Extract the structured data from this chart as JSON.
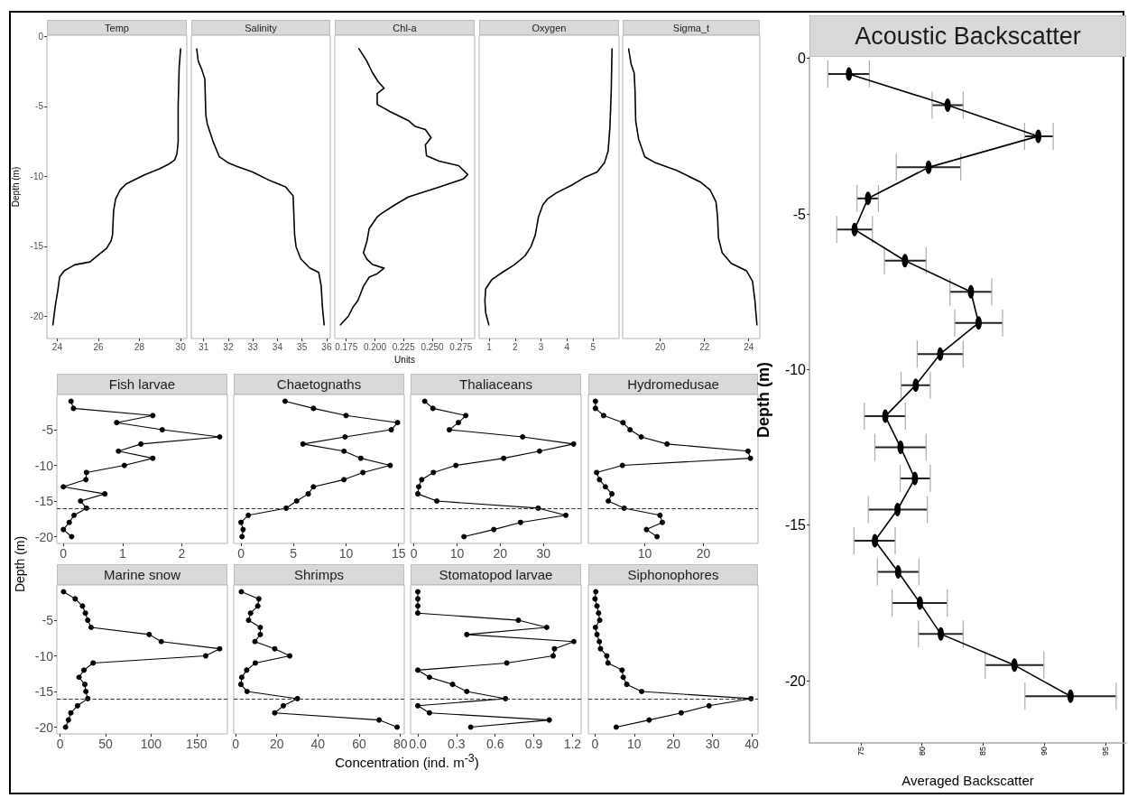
{
  "chart_data": [
    {
      "type": "line",
      "title": "Temp",
      "ylabel": "Depth (m)",
      "color": "#000000",
      "marker": "none",
      "grid": false,
      "xlim": [
        23.5,
        30.3
      ],
      "xticks": [
        24,
        26,
        28,
        30
      ],
      "ylim": [
        -21.6,
        0.1
      ],
      "yticks": [
        0,
        -5,
        -10,
        -15,
        -20
      ],
      "x": [
        30.0,
        29.93,
        29.88,
        29.88,
        29.82,
        29.71,
        29.41,
        28.97,
        28.24,
        27.35,
        27.06,
        26.84,
        26.74,
        26.69,
        26.62,
        26.4,
        26.03,
        25.59,
        24.85,
        24.34,
        24.12,
        24.04,
        23.9,
        23.79
      ],
      "values": [
        -0.88,
        -2.17,
        -4.96,
        -7.53,
        -8.39,
        -8.82,
        -9.14,
        -9.46,
        -9.89,
        -10.54,
        -10.97,
        -11.61,
        -12.47,
        -14.18,
        -14.61,
        -15.15,
        -15.58,
        -16.12,
        -16.33,
        -16.76,
        -17.19,
        -18.05,
        -19.33,
        -20.62
      ]
    },
    {
      "type": "line",
      "title": "Salinity",
      "color": "#000000",
      "marker": "none",
      "grid": false,
      "tick_labels": "x",
      "xlim": [
        30.5,
        36.15
      ],
      "xticks": [
        31,
        32,
        33,
        34,
        35,
        36
      ],
      "ylim": [
        -21.6,
        0.1
      ],
      "yticks": [
        0,
        -5,
        -10,
        -15,
        -20
      ],
      "x": [
        30.72,
        30.78,
        30.93,
        31.05,
        31.09,
        31.15,
        31.27,
        31.39,
        31.64,
        32.0,
        32.37,
        32.99,
        33.72,
        34.33,
        34.64,
        34.7,
        34.76,
        34.95,
        35.31,
        35.68,
        35.78,
        35.83,
        35.9
      ],
      "values": [
        -0.88,
        -1.74,
        -2.38,
        -3.03,
        -5.6,
        -6.24,
        -6.89,
        -7.53,
        -8.6,
        -9.03,
        -9.29,
        -9.68,
        -10.32,
        -10.75,
        -11.39,
        -14.18,
        -15.04,
        -15.9,
        -16.55,
        -16.87,
        -17.83,
        -19.33,
        -20.62
      ]
    },
    {
      "type": "line",
      "title": "Chl-a",
      "xlabel": "Units",
      "color": "#000000",
      "marker": "none",
      "grid": false,
      "tick_labels": "x",
      "xlim": [
        0.165,
        0.287
      ],
      "xticks": [
        0.175,
        {
          "value": 0.2,
          "label": "0.200"
        },
        0.225,
        {
          "value": 0.25,
          "label": "0.250"
        },
        0.275
      ],
      "ylim": [
        -21.6,
        0.1
      ],
      "yticks": [
        0,
        -5,
        -10,
        -15,
        -20
      ],
      "x": [
        0.186,
        0.193,
        0.198,
        0.203,
        0.208,
        0.202,
        0.202,
        0.213,
        0.229,
        0.235,
        0.244,
        0.249,
        0.244,
        0.245,
        0.256,
        0.273,
        0.281,
        0.277,
        0.256,
        0.229,
        0.217,
        0.205,
        0.202,
        0.195,
        0.193,
        0.19,
        0.193,
        0.198,
        0.208,
        0.202,
        0.195,
        0.19,
        0.187,
        0.185,
        0.181,
        0.177,
        0.17
      ],
      "values": [
        -0.86,
        -1.76,
        -2.6,
        -3.24,
        -3.69,
        -4.08,
        -4.85,
        -5.36,
        -6.0,
        -6.42,
        -6.65,
        -7.23,
        -7.74,
        -8.52,
        -8.91,
        -9.23,
        -9.87,
        -10.19,
        -10.77,
        -11.48,
        -12.06,
        -12.7,
        -12.9,
        -13.74,
        -14.64,
        -15.47,
        -15.92,
        -16.31,
        -16.57,
        -16.96,
        -17.21,
        -17.86,
        -18.5,
        -18.9,
        -19.34,
        -19.98,
        -20.62
      ]
    },
    {
      "type": "line",
      "title": "Oxygen",
      "color": "#000000",
      "marker": "none",
      "grid": false,
      "tick_labels": "x",
      "xlim": [
        0.62,
        6.0
      ],
      "xticks": [
        1,
        2,
        3,
        4,
        5
      ],
      "ylim": [
        -21.6,
        0.1
      ],
      "yticks": [
        0,
        -5,
        -10,
        -15,
        -20
      ],
      "x": [
        5.73,
        5.7,
        5.65,
        5.58,
        5.44,
        5.16,
        4.64,
        4.17,
        3.59,
        3.25,
        3.07,
        2.9,
        2.78,
        2.61,
        2.38,
        1.97,
        1.51,
        1.1,
        0.87,
        0.84,
        0.87,
        0.99
      ],
      "values": [
        -0.88,
        -3.88,
        -6.46,
        -8.18,
        -9.03,
        -9.68,
        -10.11,
        -10.64,
        -11.18,
        -11.61,
        -12.04,
        -12.9,
        -14.18,
        -15.04,
        -15.69,
        -16.33,
        -16.87,
        -17.4,
        -18.05,
        -18.91,
        -19.76,
        -20.62
      ]
    },
    {
      "type": "line",
      "title": "Sigma_t",
      "color": "#000000",
      "marker": "none",
      "grid": false,
      "tick_labels": "x",
      "xlim": [
        18.3,
        24.5
      ],
      "xticks": [
        20,
        22,
        24
      ],
      "ylim": [
        -21.6,
        0.1
      ],
      "yticks": [
        0,
        -5,
        -10,
        -15,
        -20
      ],
      "x": [
        18.57,
        18.68,
        18.82,
        18.86,
        18.89,
        19.02,
        19.3,
        19.78,
        20.74,
        21.84,
        22.25,
        22.52,
        22.59,
        22.63,
        22.8,
        23.21,
        23.9,
        24.17,
        24.28,
        24.37
      ],
      "values": [
        -0.88,
        -1.95,
        -2.6,
        -3.88,
        -6.03,
        -7.32,
        -8.6,
        -9.03,
        -9.57,
        -10.43,
        -10.97,
        -11.82,
        -12.9,
        -14.4,
        -15.47,
        -16.22,
        -16.76,
        -17.51,
        -18.91,
        -20.62
      ]
    },
    {
      "type": "line",
      "title": "Fish larvae",
      "ylabel": "Depth (m)",
      "color": "#000000",
      "marker": "circle",
      "grid": false,
      "xlim": [
        -0.11,
        2.77
      ],
      "xticks": [
        0,
        1,
        2
      ],
      "ylim": [
        -20.95,
        -0.05
      ],
      "yticks": [
        -5,
        -10,
        -15,
        -20
      ],
      "ref_lines": [
        {
          "axis": "y",
          "value": -16,
          "line_style": "dashed",
          "color": "#333333"
        }
      ],
      "x": [
        0.13,
        0.17,
        1.51,
        0.9,
        1.67,
        2.64,
        1.31,
        0.93,
        1.51,
        1.03,
        0.39,
        0.38,
        0.0,
        0.7,
        0.29,
        0.39,
        0.18,
        0.1,
        0.0,
        0.14
      ],
      "values": [
        -1,
        -2,
        -3,
        -4,
        -5,
        -6,
        -7,
        -8,
        -9,
        -10,
        -11,
        -12,
        -13,
        -14,
        -15,
        -16,
        -17,
        -18,
        -19,
        -20
      ]
    },
    {
      "type": "line",
      "title": "Chaetognaths",
      "color": "#000000",
      "marker": "circle",
      "grid": false,
      "tick_labels": "x",
      "xlim": [
        -0.69,
        15.54
      ],
      "xticks": [
        0,
        5,
        10,
        15
      ],
      "ylim": [
        -20.95,
        -0.05
      ],
      "ref_lines": [
        {
          "axis": "y",
          "value": -16,
          "line_style": "dashed",
          "color": "#333333"
        }
      ],
      "x": [
        4.2,
        6.9,
        10.0,
        14.9,
        14.3,
        9.9,
        5.9,
        9.8,
        11.4,
        14.2,
        11.6,
        9.8,
        6.9,
        6.4,
        5.3,
        4.3,
        0.7,
        0.0,
        0.2,
        0.1
      ],
      "values": [
        -1,
        -2,
        -3,
        -4,
        -5,
        -6,
        -7,
        -8,
        -9,
        -10,
        -11,
        -12,
        -13,
        -14,
        -15,
        -16,
        -17,
        -18,
        -19,
        -20
      ]
    },
    {
      "type": "line",
      "title": "Thaliaceans",
      "color": "#000000",
      "marker": "circle",
      "grid": false,
      "tick_labels": "x",
      "xlim": [
        -0.78,
        38.75
      ],
      "xticks": [
        0,
        10,
        20,
        30
      ],
      "ylim": [
        -20.95,
        -0.05
      ],
      "ref_lines": [
        {
          "axis": "y",
          "value": -16,
          "line_style": "dashed",
          "color": "#333333"
        }
      ],
      "x": [
        2.5,
        4.4,
        12.0,
        10.3,
        8.2,
        25.2,
        37.0,
        29.1,
        20.8,
        9.7,
        4.5,
        1.8,
        1.1,
        0.9,
        5.3,
        28.8,
        35.2,
        24.7,
        18.5,
        11.6
      ],
      "values": [
        -1,
        -2,
        -3,
        -4,
        -5,
        -6,
        -7,
        -8,
        -9,
        -10,
        -11,
        -12,
        -13,
        -14,
        -15,
        -16,
        -17,
        -18,
        -19,
        -20
      ]
    },
    {
      "type": "line",
      "title": "Hydromedusae",
      "color": "#000000",
      "marker": "circle",
      "grid": false,
      "tick_labels": "x",
      "xlim": [
        0.4,
        29.3
      ],
      "xticks": [
        10,
        20
      ],
      "ylim": [
        -20.95,
        -0.05
      ],
      "ref_lines": [
        {
          "axis": "y",
          "value": -16,
          "line_style": "dashed",
          "color": "#333333"
        }
      ],
      "x": [
        1.6,
        1.6,
        3.0,
        6.3,
        7.5,
        9.4,
        13.8,
        27.6,
        28.0,
        6.2,
        1.8,
        2.3,
        3.3,
        4.4,
        3.8,
        6.5,
        12.6,
        13.0,
        10.3,
        12.1
      ],
      "values": [
        -1,
        -2,
        -3,
        -4,
        -5,
        -6,
        -7,
        -8,
        -9,
        -10,
        -11,
        -12,
        -13,
        -14,
        -15,
        -16,
        -17,
        -18,
        -19,
        -20
      ]
    },
    {
      "type": "line",
      "title": "Marine snow",
      "color": "#000000",
      "marker": "circle",
      "grid": false,
      "xlim": [
        -3.7,
        184
      ],
      "xticks": [
        0,
        50,
        100,
        150
      ],
      "ylim": [
        -20.95,
        -0.05
      ],
      "yticks": [
        -5,
        -10,
        -15,
        -20
      ],
      "ref_lines": [
        {
          "axis": "y",
          "value": -16,
          "line_style": "dashed",
          "color": "#333333"
        }
      ],
      "x": [
        3.7,
        16.5,
        24.5,
        27.7,
        30.3,
        34,
        97.9,
        111.2,
        175.5,
        160.1,
        36.2,
        26.1,
        20.7,
        27.1,
        28.2,
        30.3,
        19.1,
        11.7,
        9.0,
        5.9
      ],
      "values": [
        -1,
        -2,
        -3,
        -4,
        -5,
        -6,
        -7,
        -8,
        -9,
        -10,
        -11,
        -12,
        -13,
        -14,
        -15,
        -16,
        -17,
        -18,
        -19,
        -20
      ]
    },
    {
      "type": "line",
      "title": "Shrimps",
      "xlabel": "Concentration (ind. m$^{-3}$)",
      "color": "#000000",
      "marker": "circle",
      "grid": false,
      "tick_labels": "x",
      "xlim": [
        -0.9,
        81.9
      ],
      "xticks": [
        0,
        20,
        40,
        60,
        80
      ],
      "ylim": [
        -20.95,
        -0.05
      ],
      "ref_lines": [
        {
          "axis": "y",
          "value": -16,
          "line_style": "dashed",
          "color": "#333333"
        }
      ],
      "x": [
        2.8,
        11.3,
        10.8,
        7.3,
        6.3,
        12.0,
        12.0,
        9.4,
        19.0,
        26.3,
        9.6,
        5.4,
        3.0,
        2.6,
        5.6,
        30.0,
        23.2,
        19.0,
        69.7,
        78.4
      ],
      "values": [
        -1,
        -2,
        -3,
        -4,
        -5,
        -6,
        -7,
        -8,
        -9,
        -10,
        -11,
        -12,
        -13,
        -14,
        -15,
        -16,
        -17,
        -18,
        -19,
        -20
      ]
    },
    {
      "type": "line",
      "title": "Stomatopod larvae",
      "color": "#000000",
      "marker": "circle",
      "grid": false,
      "tick_labels": "x",
      "xlim": [
        -0.056,
        1.267
      ],
      "xticks": [
        {
          "value": 0,
          "label": "0.0"
        },
        0.3,
        0.6,
        0.9,
        1.2
      ],
      "ylim": [
        -20.95,
        -0.05
      ],
      "ref_lines": [
        {
          "axis": "y",
          "value": -16,
          "line_style": "dashed",
          "color": "#333333"
        }
      ],
      "x": [
        0,
        0,
        0,
        0,
        0.78,
        1.0,
        0.38,
        1.21,
        1.06,
        1.05,
        0.69,
        0,
        0.09,
        0.27,
        0.38,
        0.68,
        0,
        0.09,
        1.02,
        0.41
      ],
      "values": [
        -1,
        -2,
        -3,
        -4,
        -5,
        -6,
        -7,
        -8,
        -9,
        -10,
        -11,
        -12,
        -13,
        -14,
        -15,
        -16,
        -17,
        -18,
        -19,
        -20
      ]
    },
    {
      "type": "line",
      "title": "Siphonophores",
      "color": "#000000",
      "marker": "circle",
      "grid": false,
      "tick_labels": "x",
      "xlim": [
        -1.7,
        41.6
      ],
      "xticks": [
        0,
        10,
        20,
        30,
        40
      ],
      "ylim": [
        -20.95,
        -0.05
      ],
      "ref_lines": [
        {
          "axis": "y",
          "value": -16,
          "line_style": "dashed",
          "color": "#333333"
        }
      ],
      "x": [
        0.2,
        0,
        0.5,
        0.9,
        1.2,
        0.1,
        0.5,
        1.1,
        1.4,
        3.0,
        3.3,
        6.9,
        7.2,
        8.1,
        11.9,
        39.8,
        29.1,
        22.0,
        13.8,
        5.4
      ],
      "values": [
        -1,
        -2,
        -3,
        -4,
        -5,
        -6,
        -7,
        -8,
        -9,
        -10,
        -11,
        -12,
        -13,
        -14,
        -15,
        -16,
        -17,
        -18,
        -19,
        -20
      ]
    },
    {
      "type": "line",
      "title": "Acoustic Backscatter",
      "xlabel": "Averaged Backscatter",
      "ylabel": "Depth (m)",
      "color": "#000000",
      "marker": "circle",
      "grid": false,
      "xlim": [
        70.8,
        96.7
      ],
      "xticks": [
        75,
        80,
        85,
        90,
        95
      ],
      "ylim": [
        -22,
        0.05
      ],
      "yticks": [
        0,
        -5,
        -10,
        -15,
        -20
      ],
      "x": [
        74.03,
        82.1,
        89.51,
        80.54,
        75.59,
        74.49,
        78.61,
        84.0,
        84.63,
        81.49,
        79.49,
        77.0,
        78.25,
        79.42,
        78.0,
        76.15,
        78.05,
        79.83,
        81.54,
        87.56,
        92.15
      ],
      "values": [
        -0.5,
        -1.5,
        -2.5,
        -3.5,
        -4.5,
        -5.5,
        -6.5,
        -7.5,
        -8.5,
        -9.5,
        -10.5,
        -11.5,
        -12.5,
        -13.5,
        -14.5,
        -15.5,
        -16.5,
        -17.5,
        -18.5,
        -19.5,
        -20.5
      ],
      "xerrors": [
        [
          72.3,
          75.7
        ],
        [
          80.83,
          83.37
        ],
        [
          88.39,
          90.73
        ],
        [
          77.9,
          83.17
        ],
        [
          74.69,
          76.44
        ],
        [
          73.03,
          75.95
        ],
        [
          76.93,
          80.34
        ],
        [
          82.29,
          85.71
        ],
        [
          82.68,
          86.59
        ],
        [
          79.61,
          83.37
        ],
        [
          78.29,
          80.68
        ],
        [
          75.29,
          78.64
        ],
        [
          76.15,
          80.34
        ],
        [
          78.22,
          80.68
        ],
        [
          75.61,
          80.44
        ],
        [
          74.44,
          77.81
        ],
        [
          76.35,
          79.75
        ],
        [
          77.56,
          82.07
        ],
        [
          79.71,
          83.37
        ],
        [
          85.17,
          89.97
        ],
        [
          88.42,
          95.88
        ]
      ]
    }
  ]
}
